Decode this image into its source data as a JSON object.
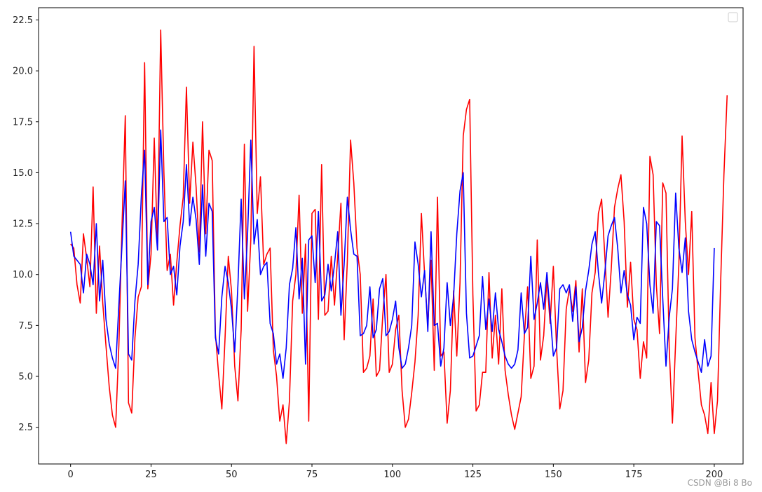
{
  "chart_data": {
    "type": "line",
    "title": "",
    "xlabel": "",
    "ylabel": "",
    "xlim": [
      -9.95,
      208.95
    ],
    "ylim": [
      0.7,
      23.1
    ],
    "xticks": [
      0,
      25,
      50,
      75,
      100,
      125,
      150,
      175,
      200
    ],
    "xtick_labels": [
      "0",
      "25",
      "50",
      "75",
      "100",
      "125",
      "150",
      "175",
      "200"
    ],
    "yticks": [
      2.5,
      5.0,
      7.5,
      10.0,
      12.5,
      15.0,
      17.5,
      20.0,
      22.5
    ],
    "ytick_labels": [
      "2.5",
      "5.0",
      "7.5",
      "10.0",
      "12.5",
      "15.0",
      "17.5",
      "20.0",
      "22.5"
    ],
    "grid": false,
    "legend": {
      "position": "top-right",
      "entries": []
    },
    "series": [
      {
        "color": "#ff0000",
        "x_start": 0,
        "values": [
          11.5,
          11.3,
          9.5,
          8.6,
          12.0,
          10.8,
          9.4,
          14.3,
          8.1,
          11.4,
          8.6,
          6.5,
          4.5,
          3.1,
          2.5,
          6.5,
          12.5,
          17.8,
          3.7,
          3.2,
          6.9,
          8.9,
          9.4,
          20.4,
          9.3,
          11.0,
          16.7,
          11.4,
          22.0,
          15.0,
          10.2,
          11.0,
          8.5,
          10.6,
          12.4,
          13.8,
          19.2,
          13.5,
          16.5,
          14.3,
          11.1,
          17.5,
          12.0,
          16.1,
          15.6,
          7.1,
          5.1,
          3.4,
          6.9,
          10.9,
          9.2,
          5.5,
          3.8,
          7.3,
          16.4,
          8.2,
          11.7,
          21.2,
          13.0,
          14.8,
          10.5,
          11.0,
          11.3,
          6.3,
          5.0,
          2.8,
          3.6,
          1.7,
          3.8,
          8.7,
          10.0,
          13.9,
          8.1,
          11.5,
          2.8,
          13.0,
          13.2,
          7.8,
          15.4,
          8.0,
          8.2,
          10.9,
          8.5,
          10.9,
          13.5,
          6.8,
          10.7,
          16.6,
          14.5,
          11.3,
          10.0,
          5.2,
          5.4,
          6.0,
          8.8,
          5.0,
          5.3,
          8.0,
          10.0,
          5.2,
          5.6,
          7.3,
          8.0,
          4.3,
          2.5,
          2.9,
          4.2,
          5.7,
          8.0,
          13.0,
          10.0,
          7.5,
          10.7,
          5.3,
          13.8,
          6.0,
          6.2,
          2.7,
          4.3,
          9.2,
          6.0,
          9.6,
          16.8,
          18.1,
          18.6,
          9.0,
          3.3,
          3.6,
          5.2,
          5.2,
          10.1,
          5.9,
          8.0,
          5.6,
          9.3,
          5.3,
          4.1,
          3.1,
          2.4,
          3.2,
          4.0,
          7.0,
          9.4,
          4.9,
          5.5,
          11.7,
          5.8,
          7.0,
          9.8,
          7.6,
          10.4,
          6.4,
          3.4,
          4.3,
          8.3,
          9.3,
          8.2,
          9.7,
          6.2,
          9.3,
          4.7,
          5.8,
          9.1,
          10.1,
          13.0,
          13.7,
          10.9,
          7.9,
          10.3,
          13.3,
          14.2,
          14.9,
          12.6,
          8.4,
          10.6,
          7.8,
          7.3,
          4.9,
          6.7,
          5.9,
          15.8,
          14.9,
          9.5,
          7.1,
          14.5,
          14.0,
          6.4,
          2.7,
          6.7,
          10.5,
          16.8,
          12.6,
          10.0,
          13.1,
          6.9,
          5.2,
          3.6,
          3.1,
          2.2,
          4.7,
          2.2,
          3.8,
          9.7,
          14.9,
          18.8
        ]
      },
      {
        "color": "#0000ff",
        "x_start": 0,
        "values": [
          12.1,
          10.9,
          10.7,
          10.5,
          9.1,
          11.0,
          10.5,
          9.5,
          12.5,
          8.7,
          10.7,
          7.8,
          6.6,
          5.9,
          5.4,
          8.5,
          11.5,
          14.6,
          6.1,
          5.8,
          8.7,
          10.5,
          13.9,
          16.1,
          9.5,
          12.6,
          13.3,
          11.2,
          17.1,
          12.6,
          12.8,
          10.0,
          10.4,
          9.0,
          11.4,
          12.6,
          15.4,
          12.4,
          13.8,
          12.7,
          10.5,
          14.4,
          10.9,
          13.5,
          13.1,
          6.9,
          6.1,
          8.9,
          10.4,
          9.6,
          8.3,
          6.2,
          9.5,
          13.7,
          8.8,
          12.0,
          16.6,
          11.5,
          12.7,
          10.0,
          10.4,
          10.6,
          7.6,
          7.1,
          5.6,
          6.1,
          4.9,
          6.4,
          9.5,
          10.3,
          12.3,
          8.8,
          10.8,
          5.6,
          11.7,
          11.9,
          9.6,
          13.1,
          8.7,
          9.0,
          10.5,
          9.2,
          10.5,
          12.1,
          8.0,
          10.5,
          13.8,
          12.2,
          11.0,
          10.9,
          7.0,
          7.1,
          7.5,
          9.4,
          6.9,
          7.3,
          9.3,
          9.8,
          7.0,
          7.2,
          7.8,
          8.7,
          6.4,
          5.4,
          5.6,
          6.4,
          7.5,
          11.6,
          10.5,
          8.9,
          10.2,
          7.2,
          12.1,
          7.5,
          7.6,
          5.5,
          6.4,
          9.6,
          7.5,
          8.9,
          12.0,
          14.1,
          15.0,
          8.1,
          5.9,
          6.0,
          6.5,
          7.0,
          9.9,
          7.3,
          8.8,
          7.2,
          9.1,
          7.3,
          6.7,
          6.0,
          5.6,
          5.4,
          5.6,
          6.3,
          9.1,
          7.1,
          7.4,
          10.9,
          7.8,
          8.6,
          9.6,
          8.3,
          10.1,
          8.1,
          6.0,
          6.4,
          9.3,
          9.5,
          9.1,
          9.5,
          7.7,
          9.4,
          6.7,
          7.4,
          9.2,
          10.2,
          11.5,
          12.1,
          10.1,
          8.6,
          10.1,
          11.9,
          12.4,
          12.8,
          11.3,
          9.1,
          10.2,
          9.0,
          8.5,
          6.8,
          7.9,
          7.6,
          13.3,
          12.5,
          9.5,
          8.1,
          12.6,
          12.4,
          8.8,
          5.5,
          7.9,
          9.3,
          14.0,
          11.3,
          10.1,
          11.8,
          8.2,
          6.8,
          6.2,
          5.7,
          5.2,
          6.8,
          5.5,
          6.0,
          11.3
        ]
      }
    ]
  },
  "watermark": "CSDN @Bi 8 Bo"
}
